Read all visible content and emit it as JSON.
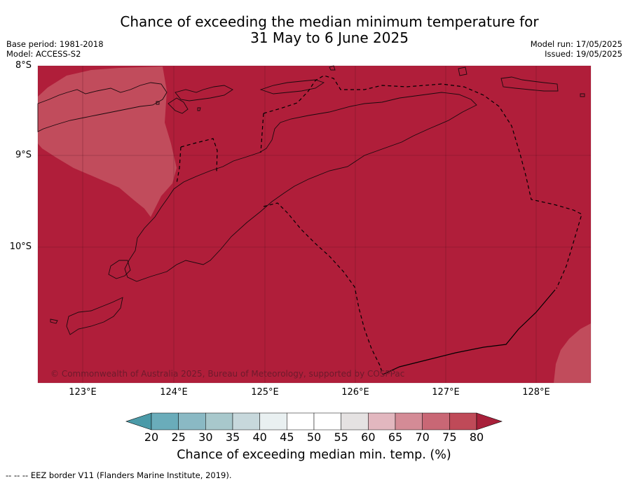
{
  "title_line1": "Chance of exceeding the median minimum temperature for",
  "title_line2": "31 May to 6 June 2025",
  "base_period": "Base period: 1981-2018",
  "model": "Model: ACCESS-S2",
  "model_run": "Model run: 17/05/2025",
  "issued": "Issued: 19/05/2025",
  "map": {
    "lat_labels": [
      "8°S",
      "9°S",
      "10°S"
    ],
    "lon_labels": [
      "123°E",
      "124°E",
      "125°E",
      "126°E",
      "127°E",
      "128°E"
    ],
    "copyright": "© Commonwealth of Australia 2025, Bureau of Meteorology, supported by COSPPac",
    "colors": {
      "above_80": "#b01e3a",
      "band_75_80": "#c14c5c",
      "coastline": "#1a0a0e",
      "eez_border": "#000000"
    }
  },
  "colorbar": {
    "ticks": [
      "20",
      "25",
      "30",
      "35",
      "40",
      "45",
      "50",
      "55",
      "60",
      "65",
      "70",
      "75",
      "80"
    ],
    "colors": [
      "#4b9aa8",
      "#6aacba",
      "#8ab9c4",
      "#a8c8cc",
      "#c7d8dc",
      "#e9f0f1",
      "#ffffff",
      "#ffffff",
      "#e5e2e2",
      "#e2b7bf",
      "#d48b96",
      "#c96775",
      "#bf4a58",
      "#a8203a"
    ],
    "label": "Chance of exceeding median min. temp. (%)"
  },
  "footnote": "--  --  -- EEZ border V11 (Flanders Marine Institute, 2019)."
}
